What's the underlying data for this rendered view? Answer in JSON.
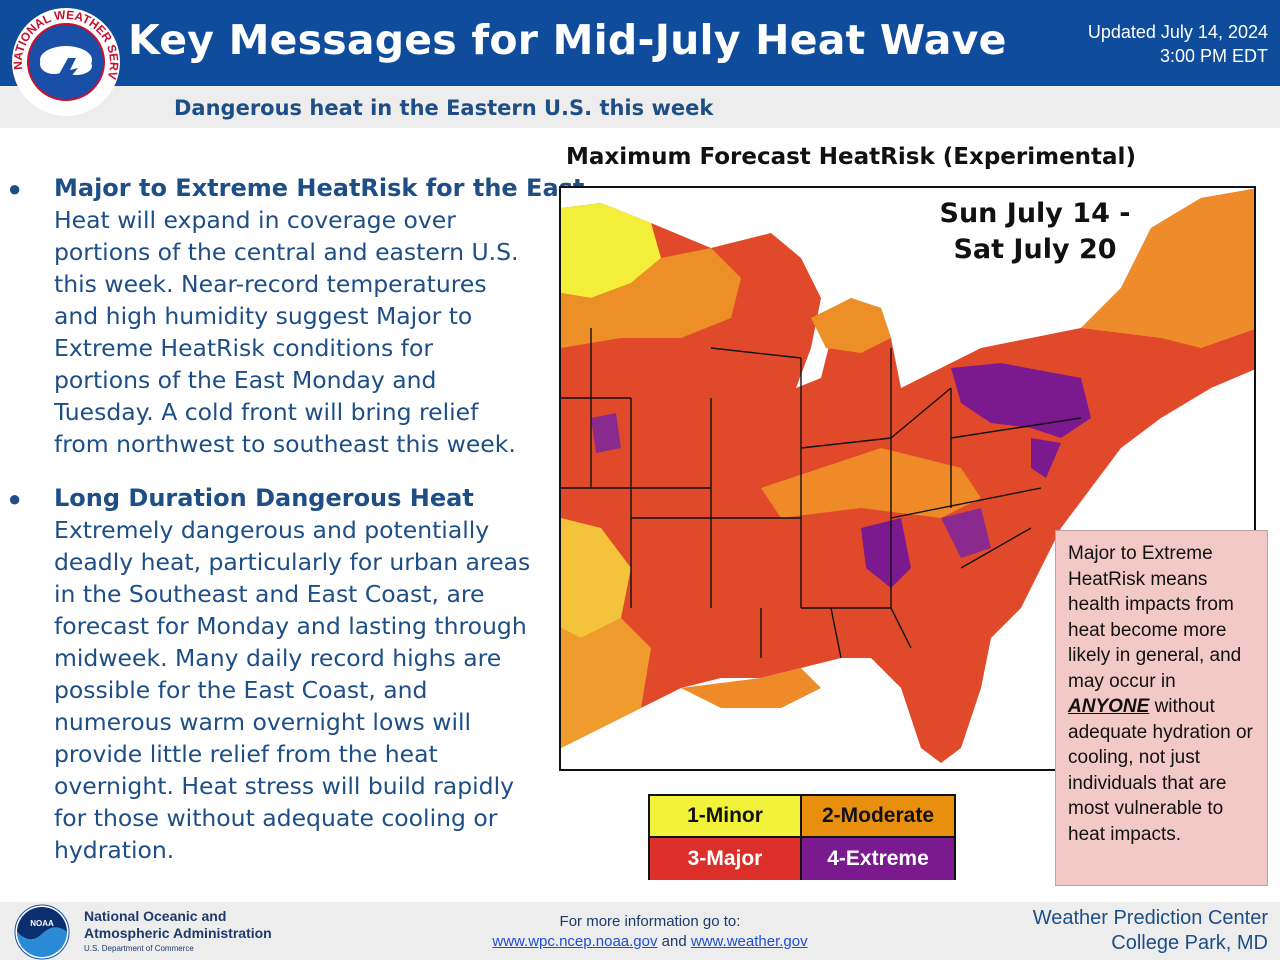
{
  "header": {
    "title": "Key Messages for Mid-July Heat Wave",
    "updated_line1": "Updated July 14, 2024",
    "updated_line2": "3:00 PM EDT",
    "subtitle": "Dangerous heat in the Eastern U.S. this week",
    "logo_text": "NATIONAL WEATHER SERVICE"
  },
  "bullets": [
    {
      "heading": "Major to Extreme HeatRisk for the East",
      "lines": [
        "Heat will expand in coverage over",
        "portions of the central and eastern U.S.",
        "this week. Near-record temperatures",
        "and high humidity suggest Major to",
        "Extreme HeatRisk conditions for",
        "portions of the East Monday and",
        "Tuesday. A cold front will bring relief",
        "from northwest to southeast this week."
      ]
    },
    {
      "heading": "Long Duration Dangerous Heat",
      "lines": [
        "Extremely dangerous and potentially",
        "deadly heat, particularly for urban areas",
        "in the Southeast and East Coast, are",
        "forecast for Monday and lasting through",
        "midweek. Many daily record highs are",
        "possible for the East Coast, and",
        "numerous warm overnight lows will",
        "provide little relief from the heat",
        "overnight. Heat stress will build rapidly",
        "for those without adequate cooling or",
        "hydration."
      ]
    }
  ],
  "map": {
    "title": "Maximum Forecast HeatRisk (Experimental)",
    "date_line1": "Sun July 14 -",
    "date_line2": "Sat July 20"
  },
  "legend": [
    {
      "label": "1-Minor",
      "color": "#f2f23a",
      "text_color": "#111111"
    },
    {
      "label": "2-Moderate",
      "color": "#e8900e",
      "text_color": "#111111"
    },
    {
      "label": "3-Major",
      "color": "#dc2f2a",
      "text_color": "#ffffff"
    },
    {
      "label": "4-Extreme",
      "color": "#7a1a8e",
      "text_color": "#ffffff"
    }
  ],
  "note": {
    "before": "Major to Extreme HeatRisk means health impacts from heat become more likely in general, and may occur in ",
    "emphasis": "ANYONE",
    "after": " without adequate hydration or cooling, not just individuals that are most vulnerable to heat impacts."
  },
  "footer": {
    "noaa_line1": "National Oceanic and",
    "noaa_line2": "Atmospheric Administration",
    "noaa_dept": "U.S. Department of Commerce",
    "noaa_logo_text": "NOAA",
    "more_info": "For more information go to:",
    "link1": "www.wpc.ncep.noaa.gov",
    "and": "and",
    "link2": "www.weather.gov",
    "wpc_line1": "Weather Prediction Center",
    "wpc_line2": "College Park, MD"
  },
  "colors": {
    "header_bg": "#0f4c9c",
    "text_blue": "#1d4e86",
    "note_bg": "#f3c9c8"
  }
}
